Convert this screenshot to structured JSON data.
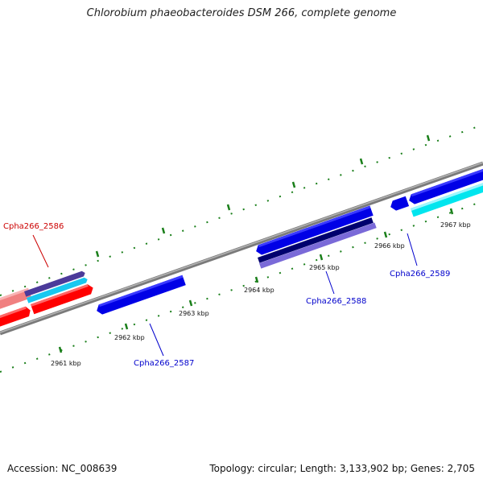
{
  "title": "Chlorobium phaeobacteroides DSM 266, complete genome",
  "footer": {
    "accession": "Accession: NC_008639",
    "topology": "Topology: circular; Length: 3,133,902 bp; Genes: 2,705"
  },
  "ticks": [
    {
      "label": "2961 kbp"
    },
    {
      "label": "2962 kbp"
    },
    {
      "label": "2963 kbp"
    },
    {
      "label": "2964 kbp"
    },
    {
      "label": "2965 kbp"
    },
    {
      "label": "2966 kbp"
    },
    {
      "label": "2967 kbp"
    }
  ],
  "genes": [
    {
      "label": "Cpha266_2586",
      "color": "#cc0000"
    },
    {
      "label": "Cpha266_2587",
      "color": "#0000cc"
    },
    {
      "label": "Cpha266_2588",
      "color": "#0000cc"
    },
    {
      "label": "Cpha266_2589",
      "color": "#0000cc"
    }
  ]
}
